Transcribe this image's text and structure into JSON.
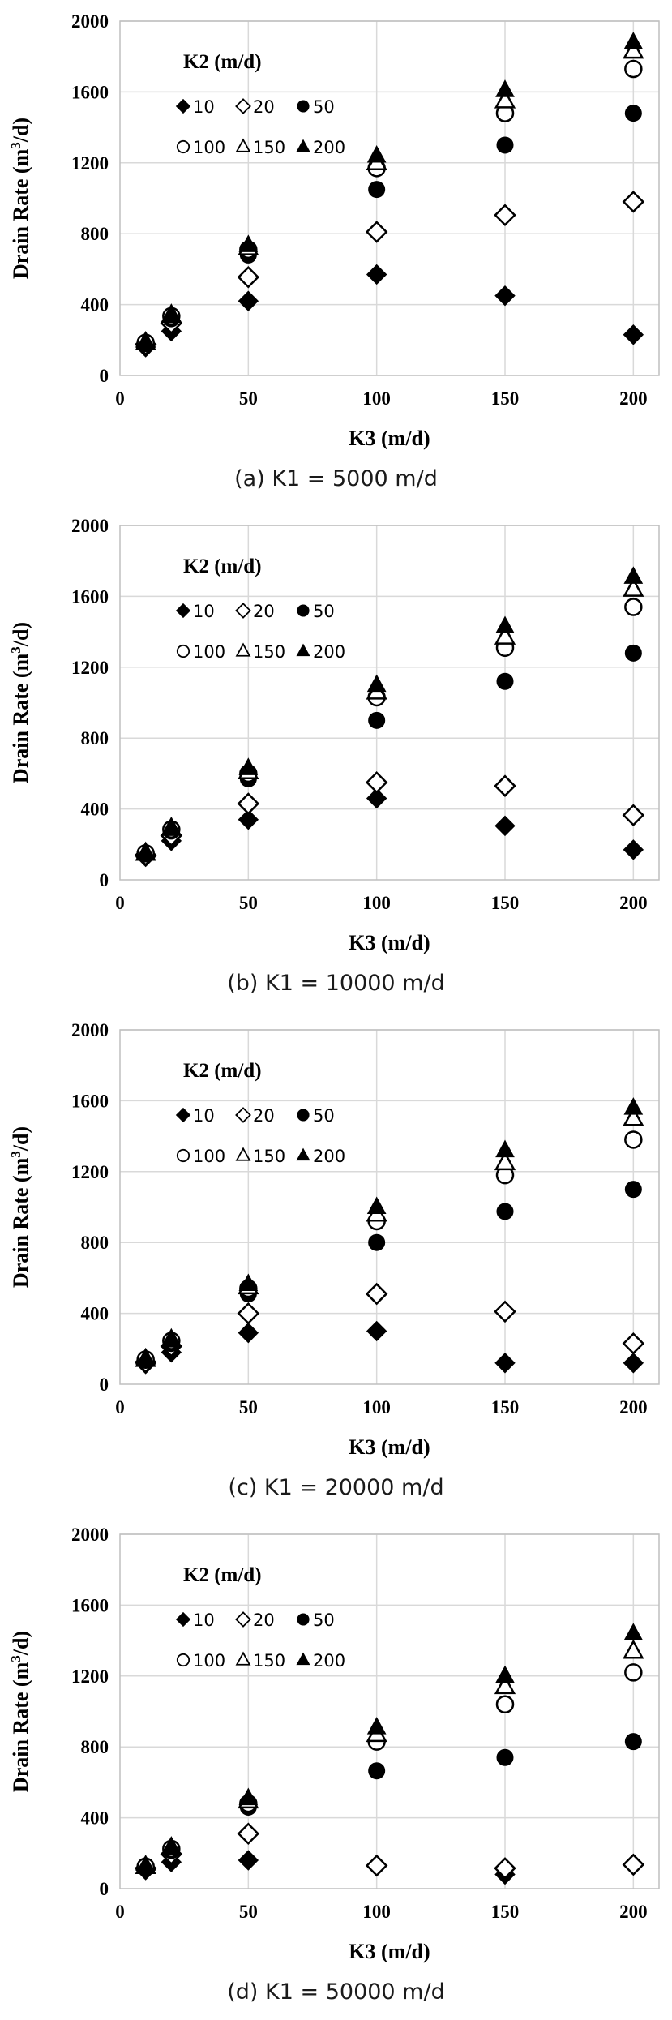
{
  "figure": {
    "legend_title": "K2 (m/d)",
    "xlabel": "K3 (m/d)",
    "ylabel_main": "Drain Rate (m",
    "ylabel_sup": "3",
    "ylabel_tail": "/d)"
  },
  "chart_data": [
    {
      "type": "scatter",
      "caption": "(a) K1 = 5000 m/d",
      "xlabel": "K3 (m/d)",
      "ylabel": "Drain Rate (m3/d)",
      "legend_title": "K2 (m/d)",
      "x": [
        10,
        20,
        50,
        100,
        150,
        200
      ],
      "xticks": [
        "0",
        "50",
        "100",
        "150",
        "200"
      ],
      "yticks": [
        "0",
        "400",
        "800",
        "1200",
        "1600",
        "2000"
      ],
      "xlim": [
        0,
        210
      ],
      "ylim": [
        0,
        2000
      ],
      "grid": true,
      "legend_position": "top-left",
      "series": [
        {
          "name": "10",
          "marker": "diamond-filled",
          "values": [
            160,
            250,
            420,
            570,
            450,
            230
          ]
        },
        {
          "name": "20",
          "marker": "diamond-open",
          "values": [
            175,
            295,
            555,
            810,
            905,
            980
          ]
        },
        {
          "name": "50",
          "marker": "circle-filled",
          "values": [
            180,
            320,
            680,
            1050,
            1300,
            1480
          ]
        },
        {
          "name": "100",
          "marker": "circle-open",
          "values": [
            185,
            335,
            710,
            1170,
            1480,
            1730
          ]
        },
        {
          "name": "150",
          "marker": "triangle-open",
          "values": [
            185,
            340,
            720,
            1200,
            1550,
            1830
          ]
        },
        {
          "name": "200",
          "marker": "triangle-filled",
          "values": [
            185,
            340,
            735,
            1240,
            1610,
            1880
          ]
        }
      ]
    },
    {
      "type": "scatter",
      "caption": "(b) K1 = 10000 m/d",
      "xlabel": "K3 (m/d)",
      "ylabel": "Drain Rate (m3/d)",
      "legend_title": "K2 (m/d)",
      "x": [
        10,
        20,
        50,
        100,
        150,
        200
      ],
      "xticks": [
        "0",
        "50",
        "100",
        "150",
        "200"
      ],
      "yticks": [
        "0",
        "400",
        "800",
        "1200",
        "1600",
        "2000"
      ],
      "xlim": [
        0,
        210
      ],
      "ylim": [
        0,
        2000
      ],
      "grid": true,
      "legend_position": "top-left",
      "series": [
        {
          "name": "10",
          "marker": "diamond-filled",
          "values": [
            130,
            220,
            340,
            460,
            305,
            170
          ]
        },
        {
          "name": "20",
          "marker": "diamond-open",
          "values": [
            140,
            250,
            430,
            550,
            530,
            365
          ]
        },
        {
          "name": "50",
          "marker": "circle-filled",
          "values": [
            150,
            275,
            570,
            900,
            1120,
            1280
          ]
        },
        {
          "name": "100",
          "marker": "circle-open",
          "values": [
            150,
            285,
            600,
            1030,
            1310,
            1540
          ]
        },
        {
          "name": "150",
          "marker": "triangle-open",
          "values": [
            150,
            290,
            610,
            1060,
            1370,
            1640
          ]
        },
        {
          "name": "200",
          "marker": "triangle-filled",
          "values": [
            150,
            295,
            630,
            1100,
            1430,
            1710
          ]
        }
      ]
    },
    {
      "type": "scatter",
      "caption": "(c) K1 = 20000 m/d",
      "xlabel": "K3 (m/d)",
      "ylabel": "Drain Rate (m3/d)",
      "legend_title": "K2 (m/d)",
      "x": [
        10,
        20,
        50,
        100,
        150,
        200
      ],
      "xticks": [
        "0",
        "50",
        "100",
        "150",
        "200"
      ],
      "yticks": [
        "0",
        "400",
        "800",
        "1200",
        "1600",
        "2000"
      ],
      "xlim": [
        0,
        210
      ],
      "ylim": [
        0,
        2000
      ],
      "grid": true,
      "legend_position": "top-left",
      "series": [
        {
          "name": "10",
          "marker": "diamond-filled",
          "values": [
            115,
            180,
            290,
            300,
            120,
            120
          ]
        },
        {
          "name": "20",
          "marker": "diamond-open",
          "values": [
            125,
            215,
            400,
            510,
            410,
            230
          ]
        },
        {
          "name": "50",
          "marker": "circle-filled",
          "values": [
            135,
            230,
            510,
            800,
            975,
            1100
          ]
        },
        {
          "name": "100",
          "marker": "circle-open",
          "values": [
            140,
            245,
            540,
            920,
            1180,
            1380
          ]
        },
        {
          "name": "150",
          "marker": "triangle-open",
          "values": [
            140,
            250,
            550,
            960,
            1250,
            1500
          ]
        },
        {
          "name": "200",
          "marker": "triangle-filled",
          "values": [
            145,
            255,
            565,
            1000,
            1320,
            1560
          ]
        }
      ]
    },
    {
      "type": "scatter",
      "caption": "(d) K1 = 50000 m/d",
      "xlabel": "K3 (m/d)",
      "ylabel": "Drain Rate (m3/d)",
      "legend_title": "K2 (m/d)",
      "x": [
        10,
        20,
        50,
        100,
        150,
        200
      ],
      "xticks": [
        "0",
        "50",
        "100",
        "150",
        "200"
      ],
      "yticks": [
        "0",
        "400",
        "800",
        "1200",
        "1600",
        "2000"
      ],
      "xlim": [
        0,
        210
      ],
      "ylim": [
        0,
        2000
      ],
      "grid": true,
      "legend_position": "top-left",
      "series": [
        {
          "name": "10",
          "marker": "diamond-filled",
          "values": [
            105,
            150,
            160,
            130,
            80,
            140
          ]
        },
        {
          "name": "20",
          "marker": "diamond-open",
          "values": [
            115,
            195,
            310,
            130,
            115,
            135
          ]
        },
        {
          "name": "50",
          "marker": "circle-filled",
          "values": [
            120,
            215,
            460,
            665,
            740,
            830
          ]
        },
        {
          "name": "100",
          "marker": "circle-open",
          "values": [
            125,
            225,
            480,
            830,
            1040,
            1220
          ]
        },
        {
          "name": "150",
          "marker": "triangle-open",
          "values": [
            125,
            230,
            495,
            870,
            1140,
            1340
          ]
        },
        {
          "name": "200",
          "marker": "triangle-filled",
          "values": [
            125,
            235,
            510,
            910,
            1200,
            1440
          ]
        }
      ]
    }
  ]
}
